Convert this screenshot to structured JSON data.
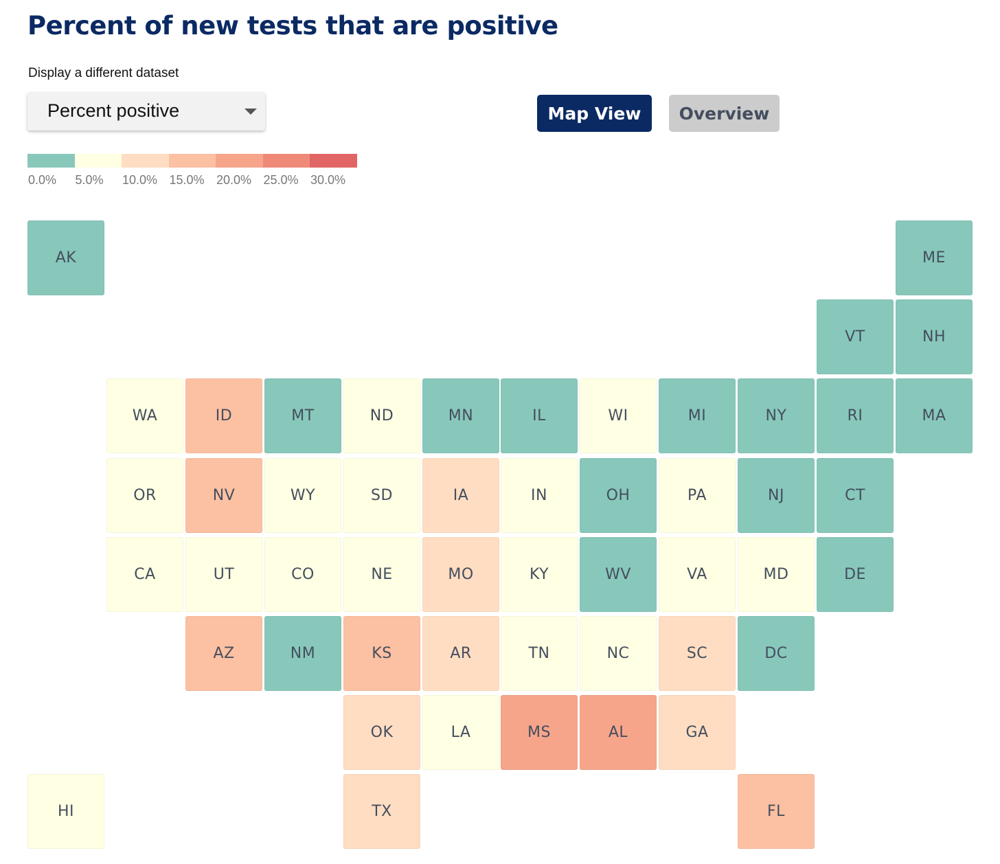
{
  "page": {
    "title": "Percent of new tests that are positive"
  },
  "controls": {
    "dataset_label": "Display a different dataset",
    "dataset_select": {
      "selected": "Percent positive"
    },
    "view_buttons": {
      "map_view": "Map View",
      "overview": "Overview",
      "active": "Map View"
    }
  },
  "colors": {
    "title": "#0b2a63",
    "active_button": "#0b2a63",
    "inactive_button": "#cccccc",
    "tile_text": "#444e5e"
  },
  "legend": {
    "bins": [
      {
        "label": "0.0%",
        "color": "#88c8bb"
      },
      {
        "label": "5.0%",
        "color": "#ffffe3"
      },
      {
        "label": "10.0%",
        "color": "#ffddc2"
      },
      {
        "label": "15.0%",
        "color": "#fcc0a2"
      },
      {
        "label": "20.0%",
        "color": "#f6a58b"
      },
      {
        "label": "25.0%",
        "color": "#ef8a79"
      },
      {
        "label": "30.0%",
        "color": "#e26565"
      }
    ]
  },
  "states": [
    {
      "abbr": "AK",
      "col": 0,
      "row": 0,
      "bin": 0
    },
    {
      "abbr": "ME",
      "col": 11,
      "row": 0,
      "bin": 0
    },
    {
      "abbr": "VT",
      "col": 10,
      "row": 1,
      "bin": 0
    },
    {
      "abbr": "NH",
      "col": 11,
      "row": 1,
      "bin": 0
    },
    {
      "abbr": "WA",
      "col": 1,
      "row": 2,
      "bin": 1
    },
    {
      "abbr": "ID",
      "col": 2,
      "row": 2,
      "bin": 3
    },
    {
      "abbr": "MT",
      "col": 3,
      "row": 2,
      "bin": 0
    },
    {
      "abbr": "ND",
      "col": 4,
      "row": 2,
      "bin": 1
    },
    {
      "abbr": "MN",
      "col": 5,
      "row": 2,
      "bin": 0
    },
    {
      "abbr": "IL",
      "col": 6,
      "row": 2,
      "bin": 0
    },
    {
      "abbr": "WI",
      "col": 7,
      "row": 2,
      "bin": 1
    },
    {
      "abbr": "MI",
      "col": 8,
      "row": 2,
      "bin": 0
    },
    {
      "abbr": "NY",
      "col": 9,
      "row": 2,
      "bin": 0
    },
    {
      "abbr": "RI",
      "col": 10,
      "row": 2,
      "bin": 0
    },
    {
      "abbr": "MA",
      "col": 11,
      "row": 2,
      "bin": 0
    },
    {
      "abbr": "OR",
      "col": 1,
      "row": 3,
      "bin": 1
    },
    {
      "abbr": "NV",
      "col": 2,
      "row": 3,
      "bin": 3
    },
    {
      "abbr": "WY",
      "col": 3,
      "row": 3,
      "bin": 1
    },
    {
      "abbr": "SD",
      "col": 4,
      "row": 3,
      "bin": 1
    },
    {
      "abbr": "IA",
      "col": 5,
      "row": 3,
      "bin": 2
    },
    {
      "abbr": "IN",
      "col": 6,
      "row": 3,
      "bin": 1
    },
    {
      "abbr": "OH",
      "col": 7,
      "row": 3,
      "bin": 0
    },
    {
      "abbr": "PA",
      "col": 8,
      "row": 3,
      "bin": 1
    },
    {
      "abbr": "NJ",
      "col": 9,
      "row": 3,
      "bin": 0
    },
    {
      "abbr": "CT",
      "col": 10,
      "row": 3,
      "bin": 0
    },
    {
      "abbr": "CA",
      "col": 1,
      "row": 4,
      "bin": 1
    },
    {
      "abbr": "UT",
      "col": 2,
      "row": 4,
      "bin": 1
    },
    {
      "abbr": "CO",
      "col": 3,
      "row": 4,
      "bin": 1
    },
    {
      "abbr": "NE",
      "col": 4,
      "row": 4,
      "bin": 1
    },
    {
      "abbr": "MO",
      "col": 5,
      "row": 4,
      "bin": 2
    },
    {
      "abbr": "KY",
      "col": 6,
      "row": 4,
      "bin": 1
    },
    {
      "abbr": "WV",
      "col": 7,
      "row": 4,
      "bin": 0
    },
    {
      "abbr": "VA",
      "col": 8,
      "row": 4,
      "bin": 1
    },
    {
      "abbr": "MD",
      "col": 9,
      "row": 4,
      "bin": 1
    },
    {
      "abbr": "DE",
      "col": 10,
      "row": 4,
      "bin": 0
    },
    {
      "abbr": "AZ",
      "col": 2,
      "row": 5,
      "bin": 3
    },
    {
      "abbr": "NM",
      "col": 3,
      "row": 5,
      "bin": 0
    },
    {
      "abbr": "KS",
      "col": 4,
      "row": 5,
      "bin": 3
    },
    {
      "abbr": "AR",
      "col": 5,
      "row": 5,
      "bin": 2
    },
    {
      "abbr": "TN",
      "col": 6,
      "row": 5,
      "bin": 1
    },
    {
      "abbr": "NC",
      "col": 7,
      "row": 5,
      "bin": 1
    },
    {
      "abbr": "SC",
      "col": 8,
      "row": 5,
      "bin": 2
    },
    {
      "abbr": "DC",
      "col": 9,
      "row": 5,
      "bin": 0
    },
    {
      "abbr": "OK",
      "col": 4,
      "row": 6,
      "bin": 2
    },
    {
      "abbr": "LA",
      "col": 5,
      "row": 6,
      "bin": 1
    },
    {
      "abbr": "MS",
      "col": 6,
      "row": 6,
      "bin": 4
    },
    {
      "abbr": "AL",
      "col": 7,
      "row": 6,
      "bin": 4
    },
    {
      "abbr": "GA",
      "col": 8,
      "row": 6,
      "bin": 2
    },
    {
      "abbr": "HI",
      "col": 0,
      "row": 7,
      "bin": 1
    },
    {
      "abbr": "TX",
      "col": 4,
      "row": 7,
      "bin": 2
    },
    {
      "abbr": "FL",
      "col": 9,
      "row": 7,
      "bin": 3
    }
  ]
}
